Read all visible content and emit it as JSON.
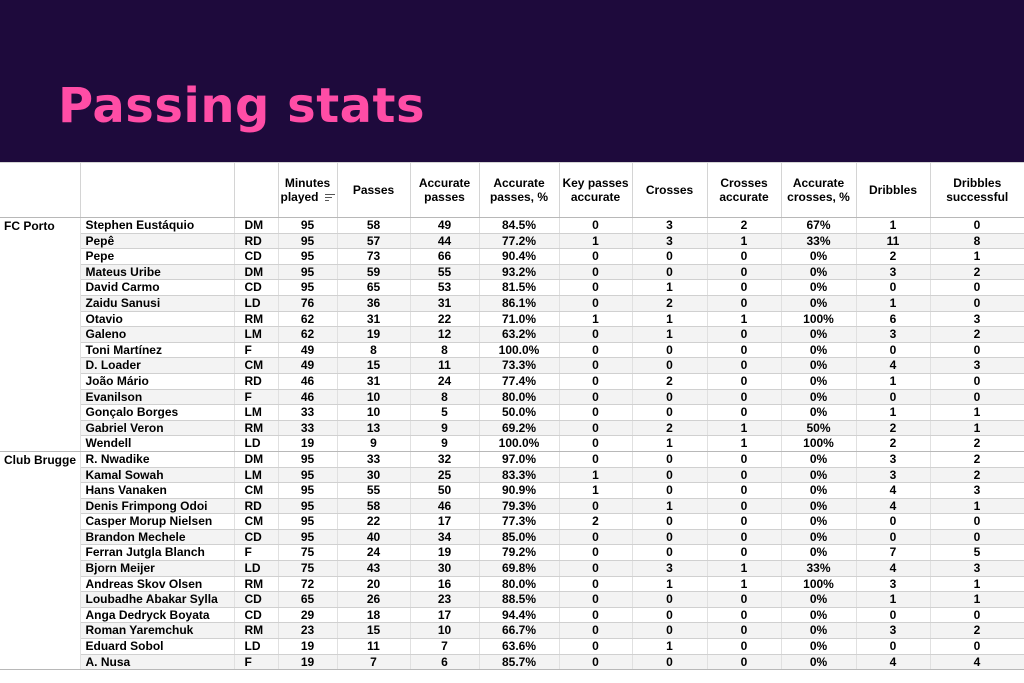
{
  "header": {
    "title": "Passing stats",
    "title_color": "#ff4da6",
    "background": "#1e0a3c"
  },
  "columns": {
    "minutes": "Minutes played",
    "passes": "Passes",
    "acc_passes": "Accurate passes",
    "acc_pct": "Accurate passes, %",
    "key": "Key passes accurate",
    "crosses": "Crosses",
    "cross_acc": "Crosses accurate",
    "cross_pct": "Accurate crosses, %",
    "dribbles": "Dribbles",
    "drib_succ": "Dribbles successful"
  },
  "teams": [
    {
      "name": "FC Porto",
      "players": [
        [
          "Stephen Eustáquio",
          "DM",
          "95",
          "58",
          "49",
          "84.5%",
          "0",
          "3",
          "2",
          "67%",
          "1",
          "0"
        ],
        [
          "Pepê",
          "RD",
          "95",
          "57",
          "44",
          "77.2%",
          "1",
          "3",
          "1",
          "33%",
          "11",
          "8"
        ],
        [
          "Pepe",
          "CD",
          "95",
          "73",
          "66",
          "90.4%",
          "0",
          "0",
          "0",
          "0%",
          "2",
          "1"
        ],
        [
          "Mateus Uribe",
          "DM",
          "95",
          "59",
          "55",
          "93.2%",
          "0",
          "0",
          "0",
          "0%",
          "3",
          "2"
        ],
        [
          "David Carmo",
          "CD",
          "95",
          "65",
          "53",
          "81.5%",
          "0",
          "1",
          "0",
          "0%",
          "0",
          "0"
        ],
        [
          "Zaidu Sanusi",
          "LD",
          "76",
          "36",
          "31",
          "86.1%",
          "0",
          "2",
          "0",
          "0%",
          "1",
          "0"
        ],
        [
          "Otavio",
          "RM",
          "62",
          "31",
          "22",
          "71.0%",
          "1",
          "1",
          "1",
          "100%",
          "6",
          "3"
        ],
        [
          "Galeno",
          "LM",
          "62",
          "19",
          "12",
          "63.2%",
          "0",
          "1",
          "0",
          "0%",
          "3",
          "2"
        ],
        [
          "Toni Martínez",
          "F",
          "49",
          "8",
          "8",
          "100.0%",
          "0",
          "0",
          "0",
          "0%",
          "0",
          "0"
        ],
        [
          "D. Loader",
          "CM",
          "49",
          "15",
          "11",
          "73.3%",
          "0",
          "0",
          "0",
          "0%",
          "4",
          "3"
        ],
        [
          "João Mário",
          "RD",
          "46",
          "31",
          "24",
          "77.4%",
          "0",
          "2",
          "0",
          "0%",
          "1",
          "0"
        ],
        [
          "Evanilson",
          "F",
          "46",
          "10",
          "8",
          "80.0%",
          "0",
          "0",
          "0",
          "0%",
          "0",
          "0"
        ],
        [
          "Gonçalo Borges",
          "LM",
          "33",
          "10",
          "5",
          "50.0%",
          "0",
          "0",
          "0",
          "0%",
          "1",
          "1"
        ],
        [
          "Gabriel Veron",
          "RM",
          "33",
          "13",
          "9",
          "69.2%",
          "0",
          "2",
          "1",
          "50%",
          "2",
          "1"
        ],
        [
          "Wendell",
          "LD",
          "19",
          "9",
          "9",
          "100.0%",
          "0",
          "1",
          "1",
          "100%",
          "2",
          "2"
        ]
      ]
    },
    {
      "name": "Club Brugge",
      "players": [
        [
          "R. Nwadike",
          "DM",
          "95",
          "33",
          "32",
          "97.0%",
          "0",
          "0",
          "0",
          "0%",
          "3",
          "2"
        ],
        [
          "Kamal Sowah",
          "LM",
          "95",
          "30",
          "25",
          "83.3%",
          "1",
          "0",
          "0",
          "0%",
          "3",
          "2"
        ],
        [
          "Hans Vanaken",
          "CM",
          "95",
          "55",
          "50",
          "90.9%",
          "1",
          "0",
          "0",
          "0%",
          "4",
          "3"
        ],
        [
          "Denis Frimpong Odoi",
          "RD",
          "95",
          "58",
          "46",
          "79.3%",
          "0",
          "1",
          "0",
          "0%",
          "4",
          "1"
        ],
        [
          "Casper Morup Nielsen",
          "CM",
          "95",
          "22",
          "17",
          "77.3%",
          "2",
          "0",
          "0",
          "0%",
          "0",
          "0"
        ],
        [
          "Brandon Mechele",
          "CD",
          "95",
          "40",
          "34",
          "85.0%",
          "0",
          "0",
          "0",
          "0%",
          "0",
          "0"
        ],
        [
          "Ferran Jutgla Blanch",
          "F",
          "75",
          "24",
          "19",
          "79.2%",
          "0",
          "0",
          "0",
          "0%",
          "7",
          "5"
        ],
        [
          "Bjorn Meijer",
          "LD",
          "75",
          "43",
          "30",
          "69.8%",
          "0",
          "3",
          "1",
          "33%",
          "4",
          "3"
        ],
        [
          "Andreas Skov Olsen",
          "RM",
          "72",
          "20",
          "16",
          "80.0%",
          "0",
          "1",
          "1",
          "100%",
          "3",
          "1"
        ],
        [
          "Loubadhe Abakar Sylla",
          "CD",
          "65",
          "26",
          "23",
          "88.5%",
          "0",
          "0",
          "0",
          "0%",
          "1",
          "1"
        ],
        [
          "Anga Dedryck Boyata",
          "CD",
          "29",
          "18",
          "17",
          "94.4%",
          "0",
          "0",
          "0",
          "0%",
          "0",
          "0"
        ],
        [
          "Roman Yaremchuk",
          "RM",
          "23",
          "15",
          "10",
          "66.7%",
          "0",
          "0",
          "0",
          "0%",
          "3",
          "2"
        ],
        [
          "Eduard Sobol",
          "LD",
          "19",
          "11",
          "7",
          "63.6%",
          "0",
          "1",
          "0",
          "0%",
          "0",
          "0"
        ],
        [
          "A. Nusa",
          "F",
          "19",
          "7",
          "6",
          "85.7%",
          "0",
          "0",
          "0",
          "0%",
          "4",
          "4"
        ]
      ]
    }
  ]
}
